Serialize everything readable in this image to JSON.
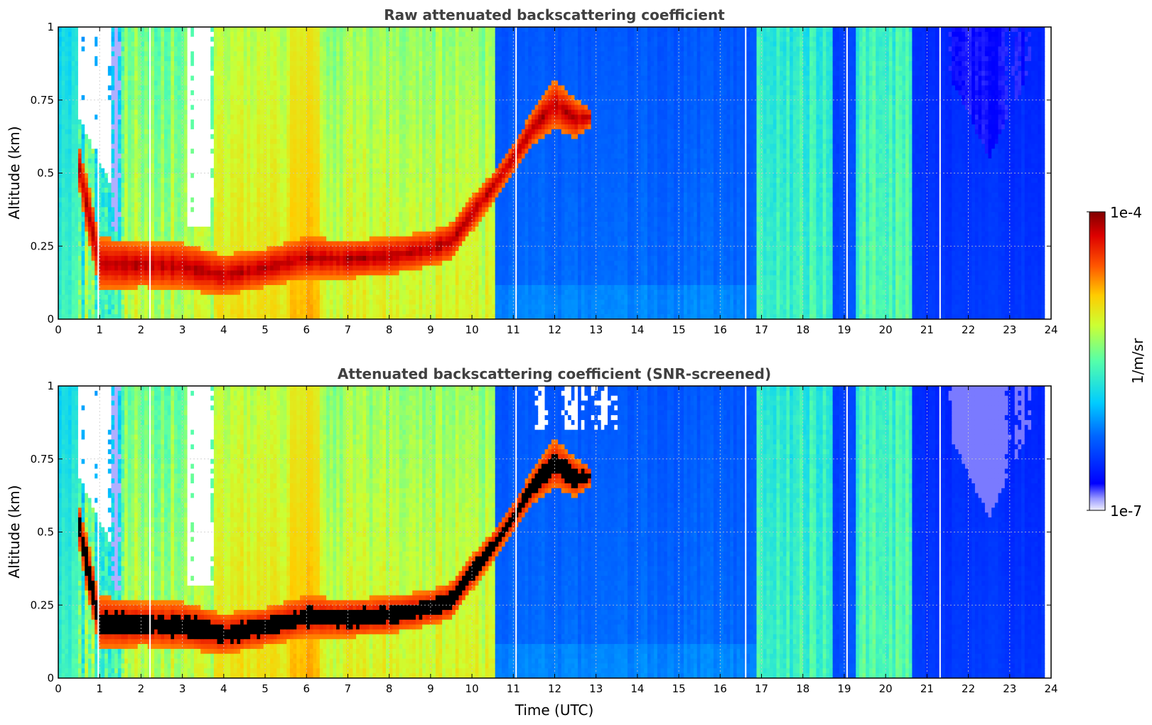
{
  "chart_data": [
    {
      "type": "heatmap",
      "title": "Raw attenuated backscattering coefficient",
      "xlabel": "",
      "ylabel": "Altitude (km)",
      "xlim": [
        0,
        24
      ],
      "ylim": [
        0,
        1
      ],
      "x_ticks": [
        "0",
        "1",
        "2",
        "3",
        "4",
        "5",
        "6",
        "7",
        "8",
        "9",
        "10",
        "11",
        "12",
        "13",
        "14",
        "15",
        "16",
        "17",
        "18",
        "19",
        "20",
        "21",
        "22",
        "23",
        "24"
      ],
      "y_ticks": [
        "0",
        "0.25",
        "0.5",
        "0.75",
        "1"
      ],
      "grid": true,
      "data_end_time": 23.8,
      "layer_top_km": [
        [
          0.5,
          0.6
        ],
        [
          0.75,
          0.45
        ],
        [
          1.0,
          0.28
        ],
        [
          1.5,
          0.27
        ],
        [
          2.0,
          0.26
        ],
        [
          3.0,
          0.26
        ],
        [
          4.0,
          0.22
        ],
        [
          5.0,
          0.24
        ],
        [
          6.0,
          0.28
        ],
        [
          7.0,
          0.27
        ],
        [
          8.0,
          0.28
        ],
        [
          9.0,
          0.3
        ],
        [
          9.5,
          0.33
        ],
        [
          10.0,
          0.42
        ],
        [
          10.5,
          0.5
        ],
        [
          11.0,
          0.6
        ],
        [
          11.5,
          0.72
        ],
        [
          12.0,
          0.82
        ],
        [
          12.5,
          0.75
        ],
        [
          12.9,
          0.72
        ]
      ],
      "layer_bottom_km": [
        [
          0.5,
          0.45
        ],
        [
          0.75,
          0.25
        ],
        [
          1.0,
          0.1
        ],
        [
          1.5,
          0.1
        ],
        [
          2.0,
          0.11
        ],
        [
          3.0,
          0.1
        ],
        [
          4.0,
          0.08
        ],
        [
          5.0,
          0.11
        ],
        [
          6.0,
          0.14
        ],
        [
          7.0,
          0.14
        ],
        [
          8.0,
          0.15
        ],
        [
          9.0,
          0.18
        ],
        [
          9.5,
          0.2
        ],
        [
          10.0,
          0.3
        ],
        [
          10.5,
          0.4
        ],
        [
          11.0,
          0.5
        ],
        [
          11.5,
          0.6
        ],
        [
          12.0,
          0.65
        ],
        [
          12.5,
          0.62
        ],
        [
          12.9,
          0.66
        ]
      ]
    },
    {
      "type": "heatmap",
      "title": "Attenuated backscattering coefficient (SNR-screened)",
      "xlabel": "Time (UTC)",
      "ylabel": "Altitude (km)",
      "xlim": [
        0,
        24
      ],
      "ylim": [
        0,
        1
      ],
      "x_ticks": [
        "0",
        "1",
        "2",
        "3",
        "4",
        "5",
        "6",
        "7",
        "8",
        "9",
        "10",
        "11",
        "12",
        "13",
        "14",
        "15",
        "16",
        "17",
        "18",
        "19",
        "20",
        "21",
        "22",
        "23",
        "24"
      ],
      "y_ticks": [
        "0",
        "0.25",
        "0.5",
        "0.75",
        "1"
      ],
      "grid": true,
      "data_end_time": 23.8
    }
  ],
  "colorbar": {
    "label": "1/m/sr",
    "max_label": "1e-4",
    "min_label": "1e-7",
    "scale": "log",
    "colormap": "jet",
    "low_color": "#e8e8ff",
    "high_color": "#800000"
  }
}
